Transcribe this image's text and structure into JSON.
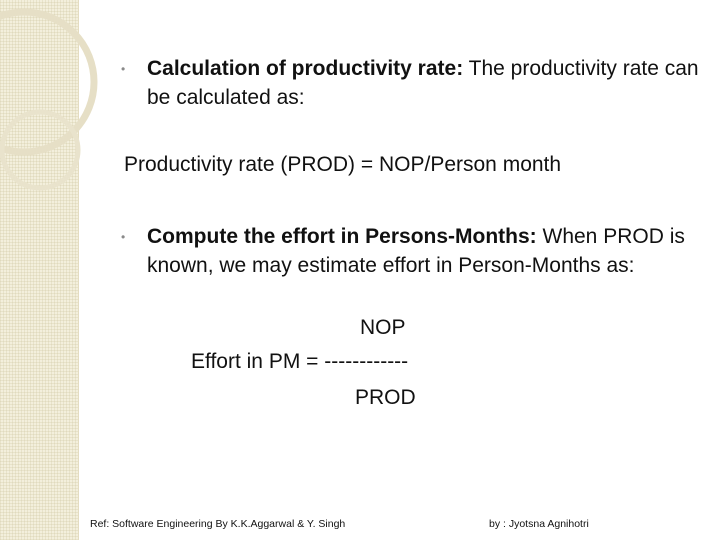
{
  "bullet_symbol": "•",
  "items": [
    {
      "heading": "Calculation of productivity rate:",
      "text": " The productivity rate can be calculated as:"
    },
    {
      "heading": "Compute the effort in Persons-Months:",
      "text": " When PROD is known, we may estimate effort in Person-Months as:"
    }
  ],
  "formula_productivity": "Productivity rate (PROD) = NOP/Person month",
  "effort_formula": {
    "numerator": "NOP",
    "label": "Effort in PM = ",
    "dashes": "------------",
    "denominator": "PROD"
  },
  "footer": {
    "reference": "Ref: Software Engineering By K.K.Aggarwal & Y. Singh",
    "author": "by : Jyotsna Agnihotri"
  }
}
